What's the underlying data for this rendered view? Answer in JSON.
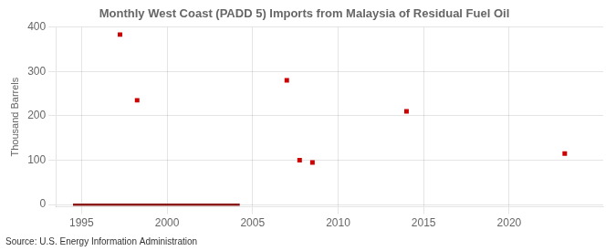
{
  "chart_data": {
    "type": "scatter",
    "title": "Monthly West Coast (PADD 5) Imports from Malaysia of Residual Fuel Oil",
    "ylabel": "Thousand Barrels",
    "source": "Source: U.S. Energy Information Administration",
    "series": [
      {
        "type": "line",
        "color": "#8b1a1a",
        "x": [
          1994.5,
          2004.25
        ],
        "values": [
          0,
          0
        ]
      },
      {
        "type": "scatter",
        "color": "#cc0000",
        "marker": "square",
        "x": [
          1997.25,
          1998.25,
          2007.0,
          2007.75,
          2008.5,
          2014.0,
          2023.25
        ],
        "values": [
          383,
          235,
          280,
          100,
          95,
          210,
          115
        ]
      }
    ],
    "xlim": [
      1993.5,
      2025.5
    ],
    "ylim": [
      -5,
      400
    ],
    "xticks": [
      1995,
      2000,
      2005,
      2010,
      2015,
      2020
    ],
    "yticks": [
      0,
      100,
      200,
      300,
      400
    ],
    "grid": true
  }
}
